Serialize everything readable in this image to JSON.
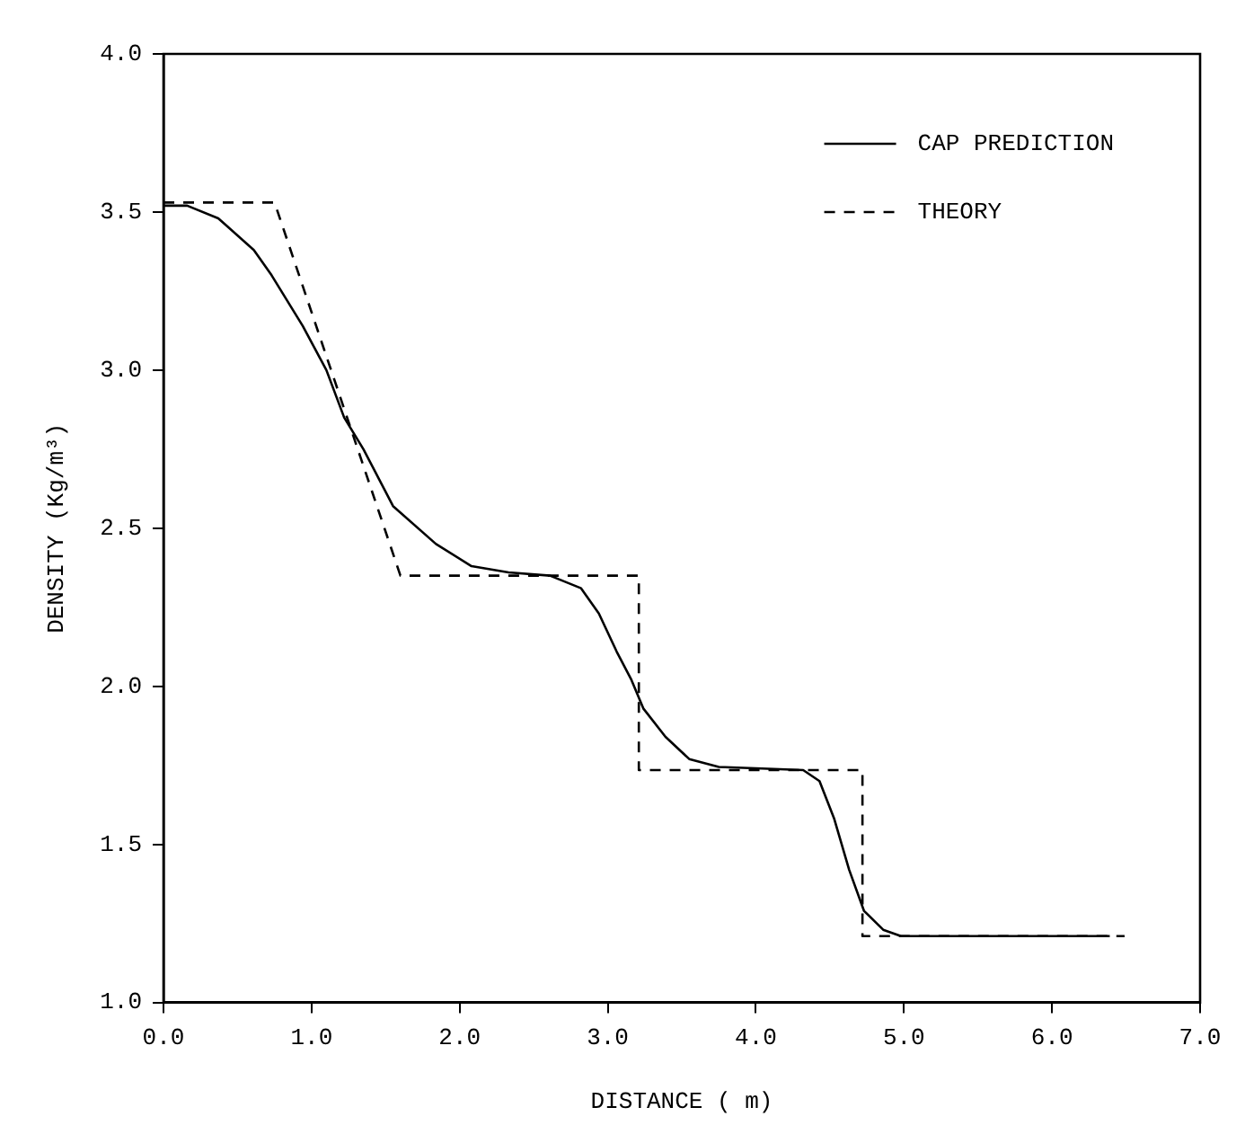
{
  "chart_data": {
    "type": "line",
    "xlabel": "DISTANCE ( m)",
    "ylabel": "DENSITY (Kg/m³)",
    "xlim": [
      0,
      7
    ],
    "ylim": [
      1,
      4
    ],
    "xticks": [
      {
        "value": 0,
        "label": "0.0"
      },
      {
        "value": 1,
        "label": "1.0"
      },
      {
        "value": 2,
        "label": "2.0"
      },
      {
        "value": 3,
        "label": "3.0"
      },
      {
        "value": 4,
        "label": "4.0"
      },
      {
        "value": 5,
        "label": "5.0"
      },
      {
        "value": 6,
        "label": "6.0"
      },
      {
        "value": 7,
        "label": "7.0"
      }
    ],
    "yticks": [
      {
        "value": 1,
        "label": "1.0"
      },
      {
        "value": 1.5,
        "label": "1.5"
      },
      {
        "value": 2,
        "label": "2.0"
      },
      {
        "value": 2.5,
        "label": "2.5"
      },
      {
        "value": 3,
        "label": "3.0"
      },
      {
        "value": 3.5,
        "label": "3.5"
      },
      {
        "value": 4,
        "label": "4.0"
      }
    ],
    "grid": false,
    "legend": "top right",
    "marker": "none",
    "series": [
      {
        "name": "CAP PREDICTION",
        "color": "#000000",
        "line_style": "solid",
        "x": [
          0,
          0.16,
          0.37,
          0.61,
          0.73,
          0.94,
          1.1,
          1.22,
          1.35,
          1.55,
          1.84,
          2.08,
          2.33,
          2.61,
          2.82,
          2.94,
          3.06,
          3.16,
          3.24,
          3.39,
          3.55,
          3.75,
          4.04,
          4.32,
          4.43,
          4.53,
          4.63,
          4.73,
          4.86,
          4.98,
          6.39
        ],
        "values": [
          3.52,
          3.52,
          3.48,
          3.38,
          3.3,
          3.14,
          3.0,
          2.85,
          2.75,
          2.57,
          2.45,
          2.38,
          2.36,
          2.35,
          2.31,
          2.23,
          2.11,
          2.02,
          1.93,
          1.84,
          1.77,
          1.745,
          1.74,
          1.735,
          1.7,
          1.58,
          1.42,
          1.29,
          1.23,
          1.21,
          1.21
        ]
      },
      {
        "name": "THEORY",
        "color": "#000000",
        "line_style": "dashed",
        "x": [
          0,
          0.75,
          1.6,
          3.21,
          3.21,
          4.72,
          4.72,
          6.49
        ],
        "values": [
          3.53,
          3.53,
          2.35,
          2.35,
          1.735,
          1.735,
          1.21,
          1.21
        ]
      }
    ]
  }
}
